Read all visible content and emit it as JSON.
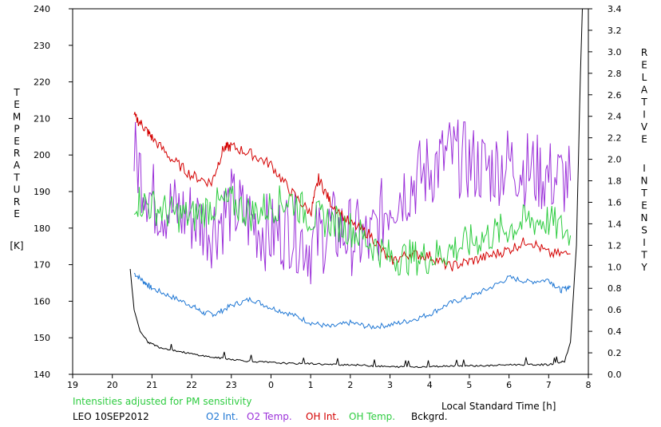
{
  "chart_data": {
    "type": "line",
    "left_axis_label_letters": [
      "T",
      "E",
      "M",
      "P",
      "E",
      "R",
      "A",
      "T",
      "U",
      "R",
      "E"
    ],
    "left_axis_unit": "[K]",
    "right_axis_label_lines": [
      [
        "R",
        "E",
        "L",
        "A",
        "T",
        "I",
        "V",
        "E"
      ],
      [
        "I",
        "N",
        "T",
        "E",
        "N",
        "S",
        "I",
        "T",
        "Y"
      ]
    ],
    "xlabel": "Local Standard Time [h]",
    "x_ticks": [
      19,
      20,
      21,
      22,
      23,
      0,
      1,
      2,
      3,
      4,
      5,
      6,
      7,
      8
    ],
    "y_left_ticks": [
      140,
      150,
      160,
      170,
      180,
      190,
      200,
      210,
      220,
      230,
      240
    ],
    "y_right_ticks": [
      "0.0",
      "0.2",
      "0.4",
      "0.6",
      "0.8",
      "1.0",
      "1.2",
      "1.4",
      "1.6",
      "1.8",
      "2.0",
      "2.2",
      "2.4",
      "2.6",
      "2.8",
      "3.0",
      "3.2",
      "3.4"
    ],
    "xlim": [
      19,
      32
    ],
    "ylim_left": [
      140,
      240
    ],
    "ylim_right": [
      0,
      3.4
    ],
    "note": "Intensities adjusted for PM sensitivity",
    "station_label": "LEO 10SEP2012",
    "series": [
      {
        "name": "O2 Int.",
        "color": "#1f77d4",
        "axis": "right",
        "x": [
          20.55,
          20.8,
          21.0,
          21.5,
          22.0,
          22.3,
          22.6,
          23.0,
          23.5,
          24.0,
          24.5,
          25.0,
          25.5,
          26.0,
          26.5,
          27.0,
          27.5,
          28.0,
          28.5,
          29.0,
          29.5,
          30.0,
          30.5,
          31.0,
          31.3,
          31.55
        ],
        "y": [
          0.94,
          0.86,
          0.8,
          0.72,
          0.64,
          0.57,
          0.56,
          0.64,
          0.7,
          0.62,
          0.56,
          0.48,
          0.44,
          0.48,
          0.44,
          0.46,
          0.5,
          0.56,
          0.66,
          0.72,
          0.8,
          0.9,
          0.86,
          0.88,
          0.78,
          0.82
        ]
      },
      {
        "name": "O2 Temp.",
        "color": "#9b30d9",
        "axis": "left",
        "x": [
          20.55,
          21.0,
          21.5,
          22.0,
          22.5,
          23.0,
          23.5,
          24.0,
          24.5,
          25.0,
          25.5,
          26.0,
          26.5,
          27.0,
          27.5,
          28.0,
          28.5,
          29.0,
          29.5,
          30.0,
          30.5,
          31.0,
          31.55
        ],
        "y": [
          200,
          188,
          185,
          183,
          180,
          186,
          182,
          178,
          180,
          175,
          180,
          178,
          176,
          188,
          192,
          196,
          200,
          198,
          196,
          198,
          196,
          194,
          193
        ]
      },
      {
        "name": "OH Int.",
        "color": "#d40000",
        "axis": "right",
        "x": [
          20.55,
          20.8,
          21.0,
          21.5,
          22.0,
          22.5,
          22.8,
          23.0,
          23.5,
          24.0,
          24.5,
          25.0,
          25.2,
          25.5,
          26.0,
          26.5,
          27.0,
          27.5,
          28.0,
          28.5,
          29.0,
          29.5,
          30.0,
          30.5,
          31.0,
          31.55
        ],
        "y": [
          2.4,
          2.3,
          2.2,
          2.0,
          1.85,
          1.78,
          2.1,
          2.12,
          2.05,
          1.95,
          1.7,
          1.5,
          1.82,
          1.6,
          1.4,
          1.3,
          1.05,
          1.12,
          1.1,
          1.0,
          1.05,
          1.1,
          1.16,
          1.25,
          1.12,
          1.12
        ]
      },
      {
        "name": "OH Temp.",
        "color": "#2ecc40",
        "axis": "left",
        "x": [
          20.55,
          21.0,
          21.5,
          22.0,
          22.5,
          23.0,
          23.5,
          24.0,
          24.5,
          25.0,
          25.5,
          26.0,
          26.5,
          27.0,
          27.5,
          28.0,
          28.5,
          29.0,
          29.5,
          30.0,
          30.5,
          31.0,
          31.55
        ],
        "y": [
          188,
          186,
          184,
          183,
          186,
          187,
          184,
          186,
          188,
          183,
          182,
          180,
          176,
          172,
          172,
          172,
          174,
          176,
          178,
          180,
          182,
          182,
          178
        ]
      },
      {
        "name": "Bckgrd.",
        "color": "#000000",
        "axis": "right",
        "x": [
          20.45,
          20.55,
          20.7,
          20.9,
          21.2,
          21.6,
          22.0,
          22.5,
          23.0,
          23.5,
          24.0,
          24.5,
          25.0,
          25.5,
          26.0,
          26.5,
          27.0,
          27.5,
          28.0,
          28.5,
          29.0,
          29.5,
          30.0,
          30.5,
          31.0,
          31.4,
          31.55,
          31.7,
          31.8,
          31.85
        ],
        "y": [
          0.98,
          0.6,
          0.4,
          0.3,
          0.25,
          0.22,
          0.19,
          0.16,
          0.14,
          0.12,
          0.11,
          0.1,
          0.1,
          0.09,
          0.09,
          0.08,
          0.07,
          0.07,
          0.07,
          0.08,
          0.08,
          0.08,
          0.09,
          0.09,
          0.09,
          0.12,
          0.3,
          1.2,
          2.8,
          3.4
        ]
      }
    ]
  }
}
